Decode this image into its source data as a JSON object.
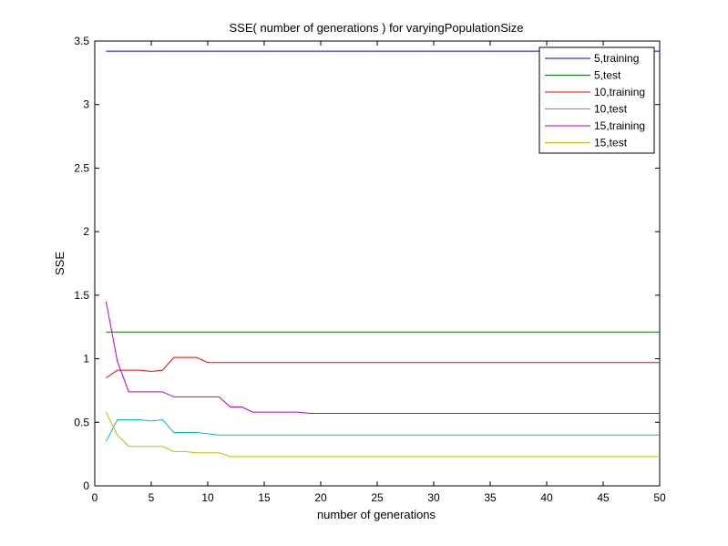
{
  "chart_data": {
    "type": "line",
    "title": "SSE( number of generations ) for varyingPopulationSize",
    "xlabel": "number of generations",
    "ylabel": "SSE",
    "xlim": [
      0,
      50
    ],
    "ylim": [
      0,
      3.5
    ],
    "xticks": [
      0,
      5,
      10,
      15,
      20,
      25,
      30,
      35,
      40,
      45,
      50
    ],
    "yticks": [
      0,
      0.5,
      1,
      1.5,
      2,
      2.5,
      3,
      3.5
    ],
    "xtick_labels": [
      "0",
      "5",
      "10",
      "15",
      "20",
      "25",
      "30",
      "35",
      "40",
      "45",
      "50"
    ],
    "ytick_labels": [
      "0",
      "0.5",
      "1",
      "1.5",
      "2",
      "2.5",
      "3",
      "3.5"
    ],
    "grid": false,
    "legend_position": "top-right",
    "x": [
      1,
      2,
      3,
      4,
      5,
      6,
      7,
      8,
      9,
      10,
      11,
      12,
      13,
      14,
      15,
      16,
      17,
      18,
      19,
      20,
      21,
      22,
      23,
      24,
      25,
      26,
      27,
      28,
      29,
      30,
      31,
      32,
      33,
      34,
      35,
      36,
      37,
      38,
      39,
      40,
      41,
      42,
      43,
      44,
      45,
      46,
      47,
      48,
      49,
      50
    ],
    "series": [
      {
        "name": "5,training",
        "color": "#0000ff",
        "values": [
          3.42,
          3.42,
          3.42,
          3.42,
          3.42,
          3.42,
          3.42,
          3.42,
          3.42,
          3.42,
          3.42,
          3.42,
          3.42,
          3.42,
          3.42,
          3.42,
          3.42,
          3.42,
          3.42,
          3.42,
          3.42,
          3.42,
          3.42,
          3.42,
          3.42,
          3.42,
          3.42,
          3.42,
          3.42,
          3.42,
          3.42,
          3.42,
          3.42,
          3.42,
          3.42,
          3.42,
          3.42,
          3.42,
          3.42,
          3.42,
          3.42,
          3.42,
          3.42,
          3.42,
          3.42,
          3.42,
          3.42,
          3.42,
          3.42,
          3.42
        ]
      },
      {
        "name": "5,test",
        "color": "#008000",
        "values": [
          1.21,
          1.21,
          1.21,
          1.21,
          1.21,
          1.21,
          1.21,
          1.21,
          1.21,
          1.21,
          1.21,
          1.21,
          1.21,
          1.21,
          1.21,
          1.21,
          1.21,
          1.21,
          1.21,
          1.21,
          1.21,
          1.21,
          1.21,
          1.21,
          1.21,
          1.21,
          1.21,
          1.21,
          1.21,
          1.21,
          1.21,
          1.21,
          1.21,
          1.21,
          1.21,
          1.21,
          1.21,
          1.21,
          1.21,
          1.21,
          1.21,
          1.21,
          1.21,
          1.21,
          1.21,
          1.21,
          1.21,
          1.21,
          1.21,
          1.21
        ]
      },
      {
        "name": "10,training",
        "color": "#ff0000",
        "values": [
          0.85,
          0.91,
          0.91,
          0.91,
          0.9,
          0.91,
          1.01,
          1.01,
          1.01,
          0.97,
          0.97,
          0.97,
          0.97,
          0.97,
          0.97,
          0.97,
          0.97,
          0.97,
          0.97,
          0.97,
          0.97,
          0.97,
          0.97,
          0.97,
          0.97,
          0.97,
          0.97,
          0.97,
          0.97,
          0.97,
          0.97,
          0.97,
          0.97,
          0.97,
          0.97,
          0.97,
          0.97,
          0.97,
          0.97,
          0.97,
          0.97,
          0.97,
          0.97,
          0.97,
          0.97,
          0.97,
          0.97,
          0.97,
          0.97,
          0.97
        ]
      },
      {
        "name": "10,test",
        "color": "#00bfbf",
        "values": [
          0.35,
          0.52,
          0.52,
          0.52,
          0.51,
          0.52,
          0.42,
          0.42,
          0.42,
          0.41,
          0.4,
          0.4,
          0.4,
          0.4,
          0.4,
          0.4,
          0.4,
          0.4,
          0.4,
          0.4,
          0.4,
          0.4,
          0.4,
          0.4,
          0.4,
          0.4,
          0.4,
          0.4,
          0.4,
          0.4,
          0.4,
          0.4,
          0.4,
          0.4,
          0.4,
          0.4,
          0.4,
          0.4,
          0.4,
          0.4,
          0.4,
          0.4,
          0.4,
          0.4,
          0.4,
          0.4,
          0.4,
          0.4,
          0.4,
          0.4
        ]
      },
      {
        "name": "15,training",
        "color": "#bf00bf",
        "values": [
          1.45,
          0.98,
          0.74,
          0.74,
          0.74,
          0.74,
          0.7,
          0.7,
          0.7,
          0.7,
          0.7,
          0.62,
          0.62,
          0.58,
          0.58,
          0.58,
          0.58,
          0.58,
          0.57,
          0.57,
          0.57,
          0.57,
          0.57,
          0.57,
          0.57,
          0.57,
          0.57,
          0.57,
          0.57,
          0.57,
          0.57,
          0.57,
          0.57,
          0.57,
          0.57,
          0.57,
          0.57,
          0.57,
          0.57,
          0.57,
          0.57,
          0.57,
          0.57,
          0.57,
          0.57,
          0.57,
          0.57,
          0.57,
          0.57,
          0.57
        ]
      },
      {
        "name": "15,test",
        "color": "#bfbf00",
        "values": [
          0.58,
          0.4,
          0.31,
          0.31,
          0.31,
          0.31,
          0.27,
          0.27,
          0.26,
          0.26,
          0.26,
          0.23,
          0.23,
          0.23,
          0.23,
          0.23,
          0.23,
          0.23,
          0.23,
          0.23,
          0.23,
          0.23,
          0.23,
          0.23,
          0.23,
          0.23,
          0.23,
          0.23,
          0.23,
          0.23,
          0.23,
          0.23,
          0.23,
          0.23,
          0.23,
          0.23,
          0.23,
          0.23,
          0.23,
          0.23,
          0.23,
          0.23,
          0.23,
          0.23,
          0.23,
          0.23,
          0.23,
          0.23,
          0.23,
          0.23
        ]
      }
    ]
  }
}
